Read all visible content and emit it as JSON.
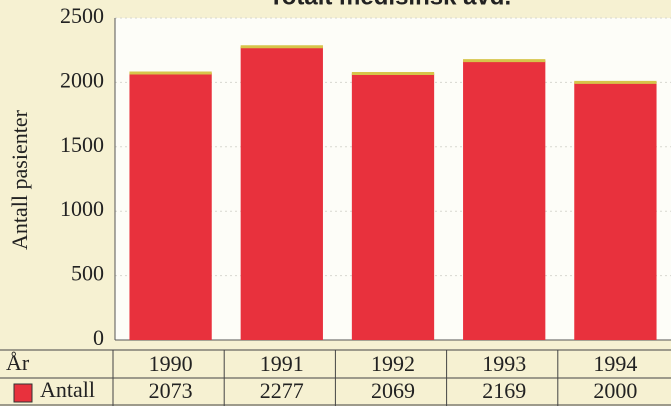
{
  "chart_data": {
    "type": "bar",
    "title": "Totalt medisinsk avd.",
    "ylabel": "Antall pasienter",
    "xlabel": "År",
    "categories": [
      "1990",
      "1991",
      "1992",
      "1993",
      "1994"
    ],
    "series": [
      {
        "name": "Antall",
        "color": "#e8313d",
        "values": [
          2073,
          2277,
          2069,
          2169,
          2000
        ]
      }
    ],
    "ylim": [
      0,
      2500
    ],
    "yticks": [
      0,
      500,
      1000,
      1500,
      2000,
      2500
    ],
    "grid": true
  }
}
